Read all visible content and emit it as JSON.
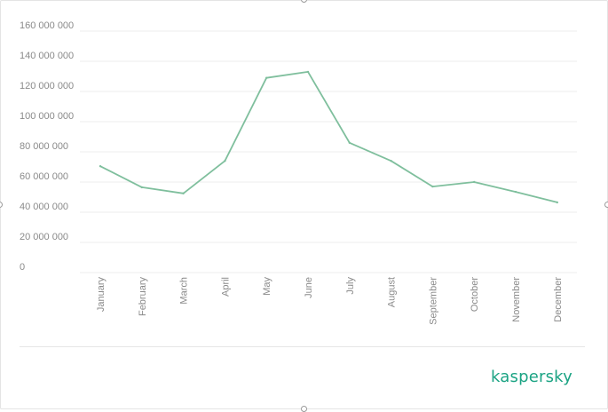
{
  "chart_data": {
    "type": "line",
    "title": "",
    "xlabel": "",
    "ylabel": "",
    "ylim": [
      0,
      160000000
    ],
    "grid": true,
    "categories": [
      "January",
      "February",
      "March",
      "April",
      "May",
      "June",
      "July",
      "August",
      "September",
      "October",
      "November",
      "December"
    ],
    "y_ticks": [
      "0",
      "20 000 000",
      "40 000 000",
      "60 000 000",
      "80 000 000",
      "100 000 000",
      "120 000 000",
      "140 000 000",
      "160 000 000"
    ],
    "series": [
      {
        "values": [
          70500000,
          56500000,
          52500000,
          74000000,
          129000000,
          133000000,
          86000000,
          74000000,
          57000000,
          60000000,
          53500000,
          46500000
        ],
        "color": "#7fbf9d"
      }
    ]
  },
  "branding": {
    "logo_text": "kaspersky",
    "logo_color": "#1aa383"
  }
}
